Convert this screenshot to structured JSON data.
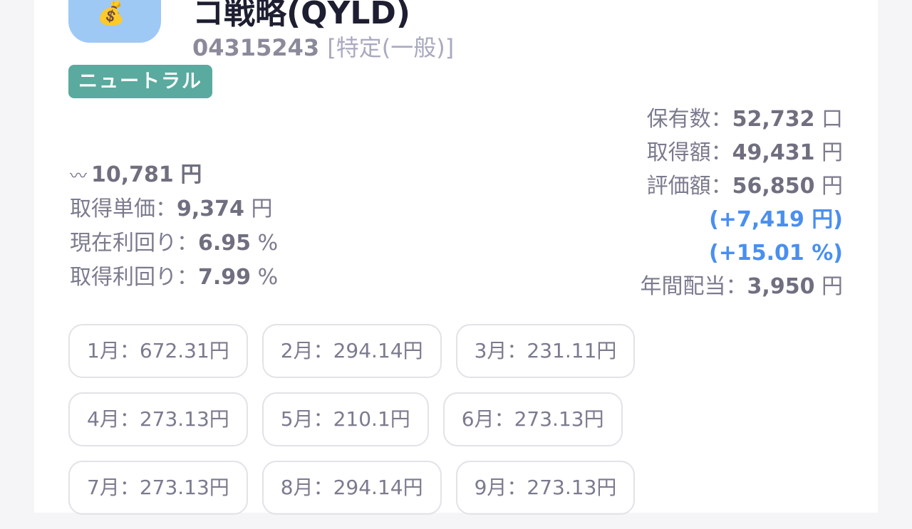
{
  "header": {
    "icon": "money-bag-icon",
    "title": "コ戦略(QYLD)",
    "code": "04315243",
    "account_type": "[特定(一般)]",
    "badge": "ニュートラル"
  },
  "left_stats": {
    "trend_icon": "trend-line-icon",
    "price": "10,781",
    "price_unit": "円",
    "rows": [
      {
        "label": "取得単価：",
        "value": "9,374",
        "unit": "円"
      },
      {
        "label": "現在利回り：",
        "value": "6.95",
        "unit": "%"
      },
      {
        "label": "取得利回り：",
        "value": "7.99",
        "unit": "%"
      }
    ]
  },
  "right_stats": {
    "holdings": {
      "label": "保有数：",
      "value": "52,732",
      "unit": "口"
    },
    "cost": {
      "label": "取得額：",
      "value": "49,431",
      "unit": "円"
    },
    "valuation": {
      "label": "評価額：",
      "value": "56,850",
      "unit": "円"
    },
    "gain_amount": "(+7,419 円)",
    "gain_percent": "(+15.01 %)",
    "annual_dividend": {
      "label": "年間配当：",
      "value": "3,950",
      "unit": "円"
    },
    "gain_color": "#4a8ff0"
  },
  "monthly": [
    "1月：672.31円",
    "2月：294.14円",
    "3月：231.11円",
    "4月：273.13円",
    "5月：210.1円",
    "6月：273.13円",
    "7月：273.13円",
    "8月：294.14円",
    "9月：273.13円"
  ]
}
